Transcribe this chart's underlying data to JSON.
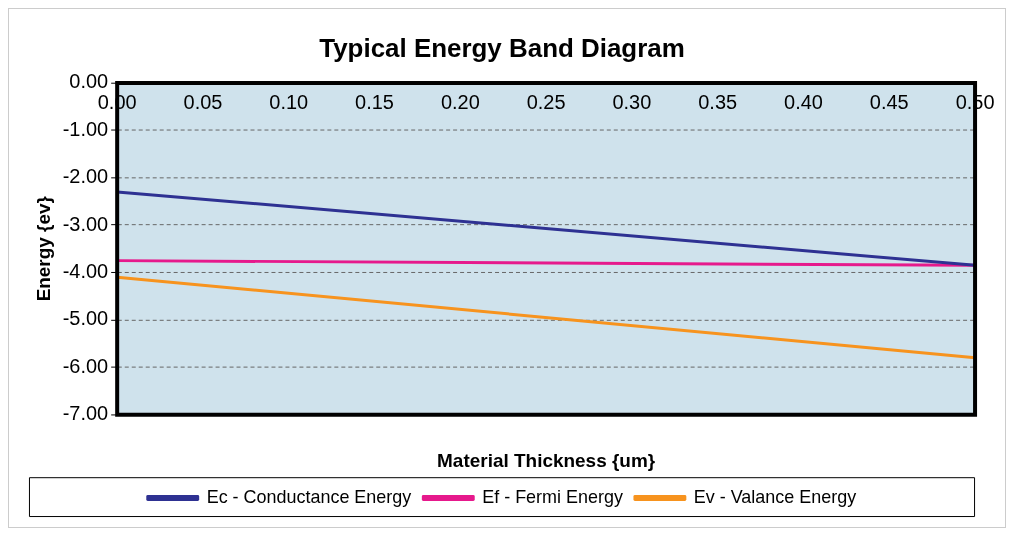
{
  "chart_data": {
    "type": "line",
    "title": "Typical Energy Band Diagram",
    "xlabel": "Material Thickness {um}",
    "ylabel": "Energy {ev}",
    "series": [
      {
        "name": "Ec - Conductance Energy",
        "color": "#2e3192",
        "values": [
          -2.3,
          -3.85
        ]
      },
      {
        "name": "Ef - Fermi Energy",
        "color": "#e6198c",
        "values": [
          -3.75,
          -3.85
        ]
      },
      {
        "name": "Ev - Valance Energy",
        "color": "#f7931e",
        "values": [
          -4.1,
          -5.8
        ]
      }
    ],
    "x": [
      0,
      0.5
    ],
    "xlim": [
      0,
      0.5
    ],
    "xticks": [
      {
        "value": 0,
        "label": "0.00"
      },
      {
        "value": 0.05,
        "label": "0.05"
      },
      {
        "value": 0.1,
        "label": "0.10"
      },
      {
        "value": 0.15,
        "label": "0.15"
      },
      {
        "value": 0.2,
        "label": "0.20"
      },
      {
        "value": 0.25,
        "label": "0.25"
      },
      {
        "value": 0.3,
        "label": "0.30"
      },
      {
        "value": 0.35,
        "label": "0.35"
      },
      {
        "value": 0.4,
        "label": "0.40"
      },
      {
        "value": 0.45,
        "label": "0.45"
      },
      {
        "value": 0.5,
        "label": "0.50"
      }
    ],
    "ylim": [
      -7,
      0
    ],
    "yticks": [
      {
        "value": 0,
        "label": "0.00"
      },
      {
        "value": -1,
        "label": "-1.00"
      },
      {
        "value": -2,
        "label": "-2.00"
      },
      {
        "value": -3,
        "label": "-3.00"
      },
      {
        "value": -4,
        "label": "-4.00"
      },
      {
        "value": -5,
        "label": "-5.00"
      },
      {
        "value": -6,
        "label": "-6.00"
      },
      {
        "value": -7,
        "label": "-7.00"
      }
    ],
    "grid": "y",
    "legend": "bottom",
    "marker": "none",
    "line_style": "solid"
  }
}
